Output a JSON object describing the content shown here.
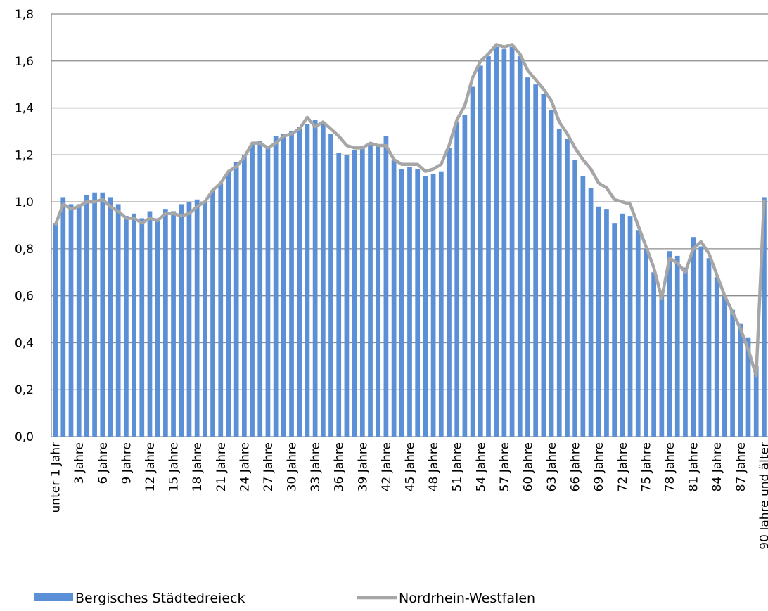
{
  "chart_data": {
    "type": "bar_line",
    "categories": [
      "unter 1 Jahr",
      null,
      null,
      "3 Jahre",
      null,
      null,
      "6 Jahre",
      null,
      null,
      "9 Jahre",
      null,
      null,
      "12 Jahre",
      null,
      null,
      "15 Jahre",
      null,
      null,
      "18 Jahre",
      null,
      null,
      "21 Jahre",
      null,
      null,
      "24 Jahre",
      null,
      null,
      "27 Jahre",
      null,
      null,
      "30 Jahre",
      null,
      null,
      "33 Jahre",
      null,
      null,
      "36 Jahre",
      null,
      null,
      "39 Jahre",
      null,
      null,
      "42 Jahre",
      null,
      null,
      "45 Jahre",
      null,
      null,
      "48 Jahre",
      null,
      null,
      "51 Jahre",
      null,
      null,
      "54 Jahre",
      null,
      null,
      "57 Jahre",
      null,
      null,
      "60 Jahre",
      null,
      null,
      "63 Jahre",
      null,
      null,
      "66 Jahre",
      null,
      null,
      "69 Jahre",
      null,
      null,
      "72 Jahre",
      null,
      null,
      "75 Jahre",
      null,
      null,
      "78 Jahre",
      null,
      null,
      "81 Jahre",
      null,
      null,
      "84 Jahre",
      null,
      null,
      "87 Jahre",
      null,
      null,
      "90 Jahre und älter"
    ],
    "series": [
      {
        "name": "Bergisches Städtedreieck",
        "kind": "bar",
        "color": "#5b8fd6",
        "values": [
          0.91,
          1.02,
          0.99,
          0.99,
          1.03,
          1.04,
          1.04,
          1.02,
          0.99,
          0.94,
          0.95,
          0.93,
          0.96,
          0.93,
          0.97,
          0.96,
          0.99,
          1.0,
          1.01,
          1.0,
          1.05,
          1.08,
          1.13,
          1.17,
          1.2,
          1.25,
          1.26,
          1.24,
          1.28,
          1.29,
          1.3,
          1.32,
          1.33,
          1.35,
          1.33,
          1.29,
          1.21,
          1.2,
          1.22,
          1.24,
          1.25,
          1.24,
          1.28,
          1.18,
          1.14,
          1.15,
          1.14,
          1.11,
          1.12,
          1.13,
          1.23,
          1.34,
          1.37,
          1.49,
          1.58,
          1.62,
          1.66,
          1.65,
          1.66,
          1.62,
          1.53,
          1.5,
          1.46,
          1.39,
          1.31,
          1.27,
          1.18,
          1.11,
          1.06,
          0.98,
          0.97,
          0.91,
          0.95,
          0.94,
          0.88,
          0.8,
          0.7,
          0.6,
          0.79,
          0.77,
          0.72,
          0.85,
          0.81,
          0.76,
          0.68,
          0.6,
          0.54,
          0.48,
          0.42,
          0.3,
          1.02
        ]
      },
      {
        "name": "Nordrhein-Westfalen",
        "kind": "line",
        "color": "#a6a6a6",
        "values": [
          0.9,
          0.99,
          0.97,
          0.98,
          1.0,
          1.0,
          1.01,
          0.98,
          0.96,
          0.93,
          0.93,
          0.91,
          0.93,
          0.92,
          0.95,
          0.95,
          0.94,
          0.95,
          0.98,
          1.0,
          1.05,
          1.08,
          1.13,
          1.15,
          1.19,
          1.25,
          1.25,
          1.23,
          1.25,
          1.28,
          1.29,
          1.31,
          1.36,
          1.32,
          1.34,
          1.31,
          1.28,
          1.24,
          1.23,
          1.23,
          1.25,
          1.24,
          1.24,
          1.18,
          1.16,
          1.16,
          1.16,
          1.13,
          1.14,
          1.16,
          1.24,
          1.35,
          1.41,
          1.53,
          1.6,
          1.63,
          1.67,
          1.66,
          1.67,
          1.63,
          1.56,
          1.52,
          1.48,
          1.43,
          1.34,
          1.29,
          1.23,
          1.18,
          1.14,
          1.08,
          1.06,
          1.01,
          1.0,
          0.99,
          0.9,
          0.81,
          0.72,
          0.59,
          0.76,
          0.74,
          0.7,
          0.8,
          0.83,
          0.78,
          0.69,
          0.6,
          0.53,
          0.46,
          0.37,
          0.26,
          1.01
        ]
      }
    ],
    "ylim": [
      0,
      1.8
    ],
    "yticks": [
      {
        "value": 0,
        "label": "0,0"
      },
      {
        "value": 0.2,
        "label": "0,2"
      },
      {
        "value": 0.4,
        "label": "0,4"
      },
      {
        "value": 0.6,
        "label": "0,6"
      },
      {
        "value": 0.8,
        "label": "0,8"
      },
      {
        "value": 1,
        "label": "1,0"
      },
      {
        "value": 1.2,
        "label": "1,2"
      },
      {
        "value": 1.4,
        "label": "1,4"
      },
      {
        "value": 1.6,
        "label": "1,6"
      },
      {
        "value": 1.8,
        "label": "1,8"
      }
    ],
    "grid": true,
    "legend": "bottom"
  }
}
